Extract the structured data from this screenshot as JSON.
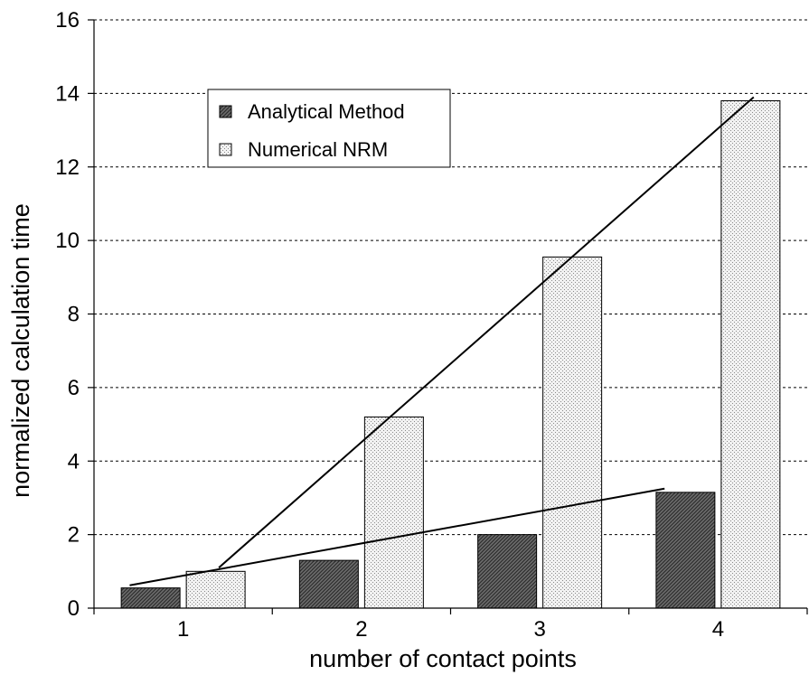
{
  "chart_data": {
    "type": "bar",
    "title": "",
    "xlabel": "number of contact points",
    "ylabel": "normalized calculation time",
    "categories": [
      "1",
      "2",
      "3",
      "4"
    ],
    "ylim": [
      0,
      16
    ],
    "yticks": [
      "0",
      "2",
      "4",
      "6",
      "8",
      "10",
      "12",
      "14",
      "16"
    ],
    "grid": "horizontal dashed",
    "legend_position": "top-left",
    "series": [
      {
        "name": "Analytical Method",
        "values": [
          0.55,
          1.3,
          2.0,
          3.15
        ],
        "pattern": "dark-hatched",
        "color": "#4a4a4a"
      },
      {
        "name": "Numerical NRM",
        "values": [
          1.0,
          5.2,
          9.55,
          13.8
        ],
        "pattern": "light-dotted",
        "color": "#e6e6e6"
      }
    ],
    "trendlines": [
      {
        "series": "Numerical NRM",
        "from": [
          1.2,
          1.1
        ],
        "to": [
          4.2,
          13.9
        ]
      },
      {
        "series": "Analytical Method",
        "from": [
          0.7,
          0.62
        ],
        "to": [
          3.7,
          3.25
        ]
      }
    ]
  }
}
